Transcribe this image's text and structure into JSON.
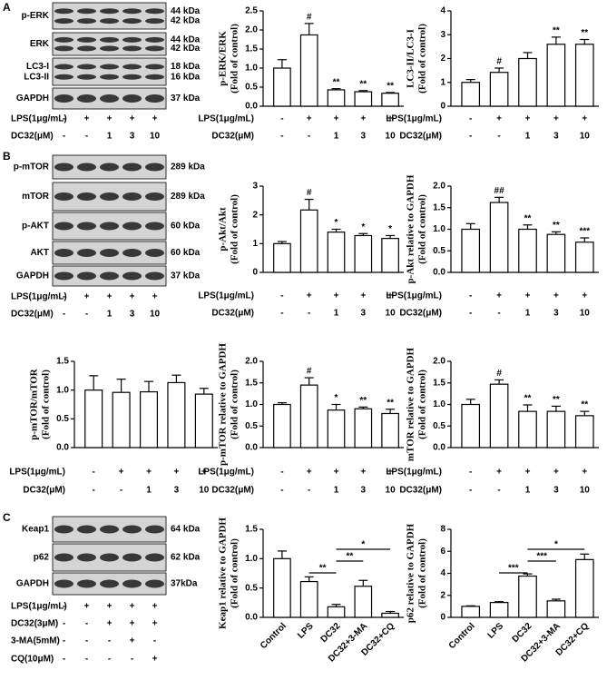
{
  "panels": [
    "A",
    "B",
    "C"
  ],
  "blots": [
    {
      "rows": [
        {
          "labels": [
            "p-ERK"
          ],
          "kda": [
            "44 kDa",
            "42 kDa"
          ]
        },
        {
          "labels": [
            "ERK"
          ],
          "kda": [
            "44 kDa",
            "42 kDa"
          ]
        },
        {
          "labels": [
            "LC3-I",
            "LC3-II"
          ],
          "kda": [
            "18 kDa",
            "16 kDa"
          ]
        },
        {
          "labels": [
            "GAPDH"
          ],
          "kda": [
            "37 kDa"
          ]
        }
      ],
      "conditions": [
        {
          "label": "LPS(1μg/mL)",
          "values": [
            "-",
            "+",
            "+",
            "+",
            "+"
          ]
        },
        {
          "label": "DC32(μM)",
          "values": [
            "-",
            "-",
            "1",
            "3",
            "10"
          ]
        }
      ]
    },
    {
      "rows": [
        {
          "labels": [
            "p-mTOR"
          ],
          "kda": [
            "289 kDa"
          ]
        },
        {
          "labels": [
            "mTOR"
          ],
          "kda": [
            "289 kDa"
          ]
        },
        {
          "labels": [
            "p-AKT"
          ],
          "kda": [
            "60 kDa"
          ]
        },
        {
          "labels": [
            "AKT"
          ],
          "kda": [
            "60 kDa"
          ]
        },
        {
          "labels": [
            "GAPDH"
          ],
          "kda": [
            "37 kDa"
          ]
        }
      ],
      "conditions": [
        {
          "label": "LPS(1μg/mL)",
          "values": [
            "-",
            "+",
            "+",
            "+",
            "+"
          ]
        },
        {
          "label": "DC32(μM)",
          "values": [
            "-",
            "-",
            "1",
            "3",
            "10"
          ]
        }
      ]
    },
    {
      "rows": [
        {
          "labels": [
            "Keap1"
          ],
          "kda": [
            "64 kDa"
          ]
        },
        {
          "labels": [
            "p62"
          ],
          "kda": [
            "62 kDa"
          ]
        },
        {
          "labels": [
            "GAPDH"
          ],
          "kda": [
            "37kDa"
          ]
        }
      ],
      "conditions": [
        {
          "label": "LPS(1μg/mL)",
          "values": [
            "-",
            "+",
            "+",
            "+",
            "+"
          ]
        },
        {
          "label": "DC32(3μM)",
          "values": [
            "-",
            "-",
            "+",
            "+",
            "+"
          ]
        },
        {
          "label": "3-MA(5mM)",
          "values": [
            "-",
            "-",
            "-",
            "+",
            "-"
          ]
        },
        {
          "label": "CQ(10μM)",
          "values": [
            "-",
            "-",
            "-",
            "-",
            "+"
          ]
        }
      ]
    }
  ],
  "chart_data": [
    {
      "type": "bar",
      "ylabel": [
        "p-ERK/ERK",
        "(Fold of control)"
      ],
      "values": [
        1.0,
        1.87,
        0.43,
        0.38,
        0.34
      ],
      "errors": [
        0.22,
        0.3,
        0.03,
        0.03,
        0.02
      ],
      "annotations": [
        null,
        "#",
        "**",
        "**",
        "**"
      ],
      "ylim": [
        0,
        2.5
      ],
      "yticks": [
        {
          "value": 0,
          "label": "0.0"
        },
        0.5,
        {
          "value": 1,
          "label": "1.0"
        },
        1.5,
        {
          "value": 2,
          "label": "2.0"
        },
        2.5
      ],
      "conditions": [
        {
          "label": "LPS(1μg/mL)",
          "values": [
            "-",
            "+",
            "+",
            "+",
            "+"
          ]
        },
        {
          "label": "DC32(μM)",
          "values": [
            "-",
            "-",
            "1",
            "3",
            "10"
          ]
        }
      ]
    },
    {
      "type": "bar",
      "ylabel": [
        "LC3-II/LC3-I",
        "(Fold of control)"
      ],
      "values": [
        1.0,
        1.42,
        2.0,
        2.6,
        2.6
      ],
      "errors": [
        0.12,
        0.18,
        0.25,
        0.3,
        0.2
      ],
      "annotations": [
        null,
        "#",
        null,
        "**",
        "**"
      ],
      "ylim": [
        0,
        4
      ],
      "yticks": [
        0,
        1,
        2,
        3,
        4
      ],
      "conditions": [
        {
          "label": "LPS(1μg/mL)",
          "values": [
            "-",
            "+",
            "+",
            "+",
            "+"
          ]
        },
        {
          "label": "DC32(μM)",
          "values": [
            "-",
            "-",
            "1",
            "3",
            "10"
          ]
        }
      ]
    },
    {
      "type": "bar",
      "ylabel": [
        "p-Akt/Akt",
        "(Fold of control)"
      ],
      "values": [
        1.0,
        2.17,
        1.4,
        1.28,
        1.18
      ],
      "errors": [
        0.07,
        0.37,
        0.1,
        0.07,
        0.1
      ],
      "annotations": [
        null,
        "#",
        "*",
        "*",
        "*"
      ],
      "ylim": [
        0,
        3
      ],
      "yticks": [
        0,
        1,
        2,
        3
      ],
      "conditions": [
        {
          "label": "LPS(1μg/mL)",
          "values": [
            "-",
            "+",
            "+",
            "+",
            "+"
          ]
        },
        {
          "label": "DC32(μM)",
          "values": [
            "-",
            "-",
            "1",
            "3",
            "10"
          ]
        }
      ]
    },
    {
      "type": "bar",
      "ylabel": [
        "p-Akt relative to GAPDH",
        "(Fold of control)"
      ],
      "values": [
        1.0,
        1.62,
        1.0,
        0.88,
        0.7
      ],
      "errors": [
        0.13,
        0.12,
        0.1,
        0.06,
        0.1
      ],
      "annotations": [
        null,
        "##",
        "**",
        "**",
        "***"
      ],
      "ylim": [
        0,
        2
      ],
      "yticks": [
        {
          "value": 0,
          "label": "0.0"
        },
        0.5,
        {
          "value": 1,
          "label": "1.0"
        },
        1.5,
        {
          "value": 2,
          "label": "2.0"
        }
      ],
      "conditions": [
        {
          "label": "LPS(1μg/mL)",
          "values": [
            "-",
            "+",
            "+",
            "+",
            "+"
          ]
        },
        {
          "label": "DC32(μM)",
          "values": [
            "-",
            "-",
            "1",
            "3",
            "10"
          ]
        }
      ]
    },
    {
      "type": "bar",
      "ylabel": [
        "p-mTOR/mTOR",
        "(Fold of control)"
      ],
      "values": [
        1.0,
        0.96,
        0.97,
        1.13,
        0.93
      ],
      "errors": [
        0.25,
        0.23,
        0.18,
        0.13,
        0.1
      ],
      "ylim": [
        0,
        1.5
      ],
      "yticks": [
        {
          "value": 0,
          "label": "0.0"
        },
        0.5,
        {
          "value": 1,
          "label": "1.0"
        },
        1.5
      ],
      "conditions": [
        {
          "label": "LPS(1μg/mL)",
          "values": [
            "-",
            "+",
            "+",
            "+",
            "+"
          ]
        },
        {
          "label": "DC32(μM)",
          "values": [
            "-",
            "-",
            "1",
            "3",
            "10"
          ]
        }
      ]
    },
    {
      "type": "bar",
      "ylabel": [
        "p-mTOR relative to GAPDH",
        "(Fold of control)"
      ],
      "values": [
        1.0,
        1.45,
        0.87,
        0.9,
        0.79
      ],
      "errors": [
        0.04,
        0.17,
        0.13,
        0.04,
        0.1
      ],
      "annotations": [
        null,
        "#",
        "*",
        "**",
        "**"
      ],
      "ylim": [
        0,
        2
      ],
      "yticks": [
        {
          "value": 0,
          "label": "0.0"
        },
        0.5,
        {
          "value": 1,
          "label": "1.0"
        },
        1.5,
        {
          "value": 2,
          "label": "2.0"
        }
      ],
      "conditions": [
        {
          "label": "LPS(1μg/mL)",
          "values": [
            "-",
            "+",
            "+",
            "+",
            "+"
          ]
        },
        {
          "label": "DC32(μM)",
          "values": [
            "-",
            "-",
            "1",
            "3",
            "10"
          ]
        }
      ]
    },
    {
      "type": "bar",
      "ylabel": [
        "mTOR relative to GAPDH",
        "(Fold of control)"
      ],
      "values": [
        1.0,
        1.47,
        0.84,
        0.84,
        0.74
      ],
      "errors": [
        0.12,
        0.1,
        0.15,
        0.12,
        0.1
      ],
      "annotations": [
        null,
        "#",
        "**",
        "**",
        "**"
      ],
      "ylim": [
        0,
        2
      ],
      "yticks": [
        {
          "value": 0,
          "label": "0.0"
        },
        0.5,
        {
          "value": 1,
          "label": "1.0"
        },
        1.5,
        {
          "value": 2,
          "label": "2.0"
        }
      ],
      "conditions": [
        {
          "label": "LPS(1μg/mL)",
          "values": [
            "-",
            "+",
            "+",
            "+",
            "+"
          ]
        },
        {
          "label": "DC32(μM)",
          "values": [
            "-",
            "-",
            "1",
            "3",
            "10"
          ]
        }
      ]
    },
    {
      "type": "bar",
      "ylabel": [
        "Keap1 relative to GAPDH",
        "(Fold of control)"
      ],
      "categories": [
        "Control",
        "LPS",
        "DC32",
        "DC32+3-MA",
        "DC32+CQ"
      ],
      "values": [
        1.0,
        0.61,
        0.18,
        0.53,
        0.07
      ],
      "errors": [
        0.13,
        0.08,
        0.04,
        0.1,
        0.03
      ],
      "comparisons": [
        {
          "from": 1,
          "to": 2,
          "label": "**"
        },
        {
          "from": 2,
          "to": 3,
          "label": "**"
        },
        {
          "from": 2,
          "to": 4,
          "label": "*"
        }
      ],
      "ylim": [
        0,
        1.5
      ],
      "yticks": [
        {
          "value": 0,
          "label": "0.0"
        },
        0.5,
        {
          "value": 1,
          "label": "1.0"
        },
        1.5
      ]
    },
    {
      "type": "bar",
      "ylabel": [
        "p62 relative to GAPDH",
        "(Fold of control)"
      ],
      "categories": [
        "Control",
        "LPS",
        "DC32",
        "DC32+3-MA",
        "DC32+CQ"
      ],
      "values": [
        1.0,
        1.35,
        3.75,
        1.5,
        5.25
      ],
      "errors": [
        0.05,
        0.08,
        0.2,
        0.15,
        0.5
      ],
      "comparisons": [
        {
          "from": 1,
          "to": 2,
          "label": "***"
        },
        {
          "from": 2,
          "to": 3,
          "label": "***"
        },
        {
          "from": 2,
          "to": 4,
          "label": "*"
        }
      ],
      "ylim": [
        0,
        8
      ],
      "yticks": [
        0,
        2,
        4,
        6,
        8
      ]
    }
  ]
}
